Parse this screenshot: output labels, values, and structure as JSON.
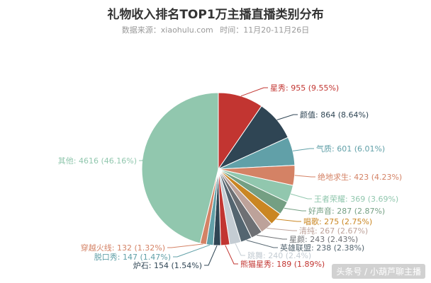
{
  "chart_data": {
    "type": "pie",
    "title": "礼物收入排名TOP1万主播直播类别分布",
    "subtitle_source": "数据来源：xiaohulu.com",
    "subtitle_time": "时间：11月20-11月26日",
    "slices": [
      {
        "name": "星秀",
        "value": 955,
        "percent": "9.55%",
        "color": "#c23531"
      },
      {
        "name": "颜值",
        "value": 864,
        "percent": "8.64%",
        "color": "#2f4554"
      },
      {
        "name": "气质",
        "value": 601,
        "percent": "6.01%",
        "color": "#61a0a8"
      },
      {
        "name": "绝地求生",
        "value": 423,
        "percent": "4.23%",
        "color": "#d48265"
      },
      {
        "name": "王者荣耀",
        "value": 369,
        "percent": "3.69%",
        "color": "#91c7ae"
      },
      {
        "name": "好声音",
        "value": 287,
        "percent": "2.87%",
        "color": "#749f83"
      },
      {
        "name": "唱歌",
        "value": 275,
        "percent": "2.75%",
        "color": "#ca8622"
      },
      {
        "name": "清纯",
        "value": 267,
        "percent": "2.67%",
        "color": "#bda29a"
      },
      {
        "name": "星颜",
        "value": 243,
        "percent": "2.43%",
        "color": "#6e7074"
      },
      {
        "name": "英雄联盟",
        "value": 238,
        "percent": "2.38%",
        "color": "#546570"
      },
      {
        "name": "跳舞",
        "value": 240,
        "percent": "2.4%",
        "color": "#c4ccd3"
      },
      {
        "name": "熊猫星秀",
        "value": 189,
        "percent": "1.89%",
        "color": "#c23531"
      },
      {
        "name": "炉石",
        "value": 154,
        "percent": "1.54%",
        "color": "#2f4554"
      },
      {
        "name": "脱口秀",
        "value": 147,
        "percent": "1.47%",
        "color": "#61a0a8"
      },
      {
        "name": "穿越火线",
        "value": 132,
        "percent": "1.32%",
        "color": "#d48265"
      },
      {
        "name": "其他",
        "value": 4616,
        "percent": "46.16%",
        "color": "#91c7ae"
      }
    ]
  },
  "watermark": "头条号 / 小葫芦聊主播"
}
